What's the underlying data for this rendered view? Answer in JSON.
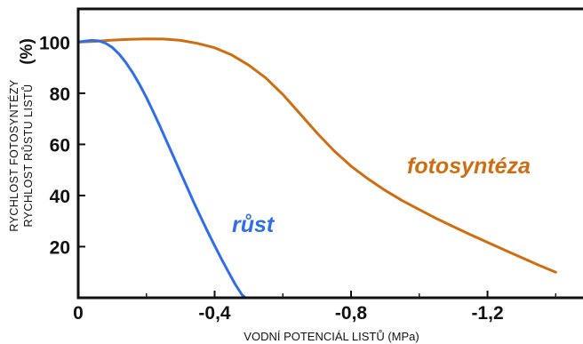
{
  "chart_data": {
    "type": "line",
    "xlabel": "VODNÍ POTENCIÁL LISTŮ (MPa)",
    "ylabel_line1": "RYCHLOST FOTOSYNTÉZY",
    "ylabel_line2": "RYCHLOST RŮSTU LISTŮ",
    "y_unit": "(%)",
    "xlim": [
      0,
      -1.48
    ],
    "ylim": [
      0,
      113
    ],
    "x_ticks": [
      0,
      -0.4,
      -0.8,
      -1.2
    ],
    "x_tick_labels": [
      "0",
      "-0,4",
      "-0,8",
      "-1,2"
    ],
    "x_minor_ticks": [
      -0.2,
      -0.6,
      -1.0,
      -1.4
    ],
    "y_ticks": [
      20,
      40,
      60,
      80,
      100
    ],
    "y_tick_labels": [
      "20",
      "40",
      "60",
      "80",
      "100"
    ],
    "grid": false,
    "series": [
      {
        "name": "fotosyntéza",
        "color": "#cf6e10",
        "points": [
          [
            0,
            100
          ],
          [
            -0.05,
            100.3
          ],
          [
            -0.1,
            100.8
          ],
          [
            -0.15,
            101.1
          ],
          [
            -0.2,
            101.3
          ],
          [
            -0.25,
            101.2
          ],
          [
            -0.3,
            100.7
          ],
          [
            -0.35,
            99.5
          ],
          [
            -0.4,
            97.8
          ],
          [
            -0.45,
            95
          ],
          [
            -0.5,
            91
          ],
          [
            -0.55,
            86
          ],
          [
            -0.6,
            79.5
          ],
          [
            -0.65,
            72
          ],
          [
            -0.7,
            64.5
          ],
          [
            -0.75,
            57.5
          ],
          [
            -0.8,
            51.5
          ],
          [
            -0.85,
            46.5
          ],
          [
            -0.9,
            42
          ],
          [
            -0.95,
            38
          ],
          [
            -1.0,
            34.5
          ],
          [
            -1.05,
            31
          ],
          [
            -1.1,
            27.8
          ],
          [
            -1.15,
            24.7
          ],
          [
            -1.2,
            21.7
          ],
          [
            -1.25,
            18.7
          ],
          [
            -1.3,
            15.7
          ],
          [
            -1.35,
            12.8
          ],
          [
            -1.4,
            10
          ]
        ]
      },
      {
        "name": "růst",
        "color": "#2f6ee8",
        "points": [
          [
            0,
            100
          ],
          [
            -0.02,
            100.4
          ],
          [
            -0.04,
            100.7
          ],
          [
            -0.06,
            100.5
          ],
          [
            -0.08,
            99.6
          ],
          [
            -0.1,
            97.9
          ],
          [
            -0.12,
            95.3
          ],
          [
            -0.14,
            92
          ],
          [
            -0.16,
            88
          ],
          [
            -0.18,
            83.4
          ],
          [
            -0.2,
            78.3
          ],
          [
            -0.22,
            72.8
          ],
          [
            -0.24,
            67
          ],
          [
            -0.26,
            61
          ],
          [
            -0.28,
            55
          ],
          [
            -0.3,
            49
          ],
          [
            -0.32,
            43
          ],
          [
            -0.34,
            37
          ],
          [
            -0.36,
            31.3
          ],
          [
            -0.38,
            25.8
          ],
          [
            -0.4,
            20.4
          ],
          [
            -0.42,
            15.2
          ],
          [
            -0.44,
            10.2
          ],
          [
            -0.46,
            5.4
          ],
          [
            -0.48,
            1.2
          ],
          [
            -0.49,
            0
          ]
        ]
      }
    ],
    "series_labels": [
      "fotosyntéza",
      "růst"
    ]
  }
}
